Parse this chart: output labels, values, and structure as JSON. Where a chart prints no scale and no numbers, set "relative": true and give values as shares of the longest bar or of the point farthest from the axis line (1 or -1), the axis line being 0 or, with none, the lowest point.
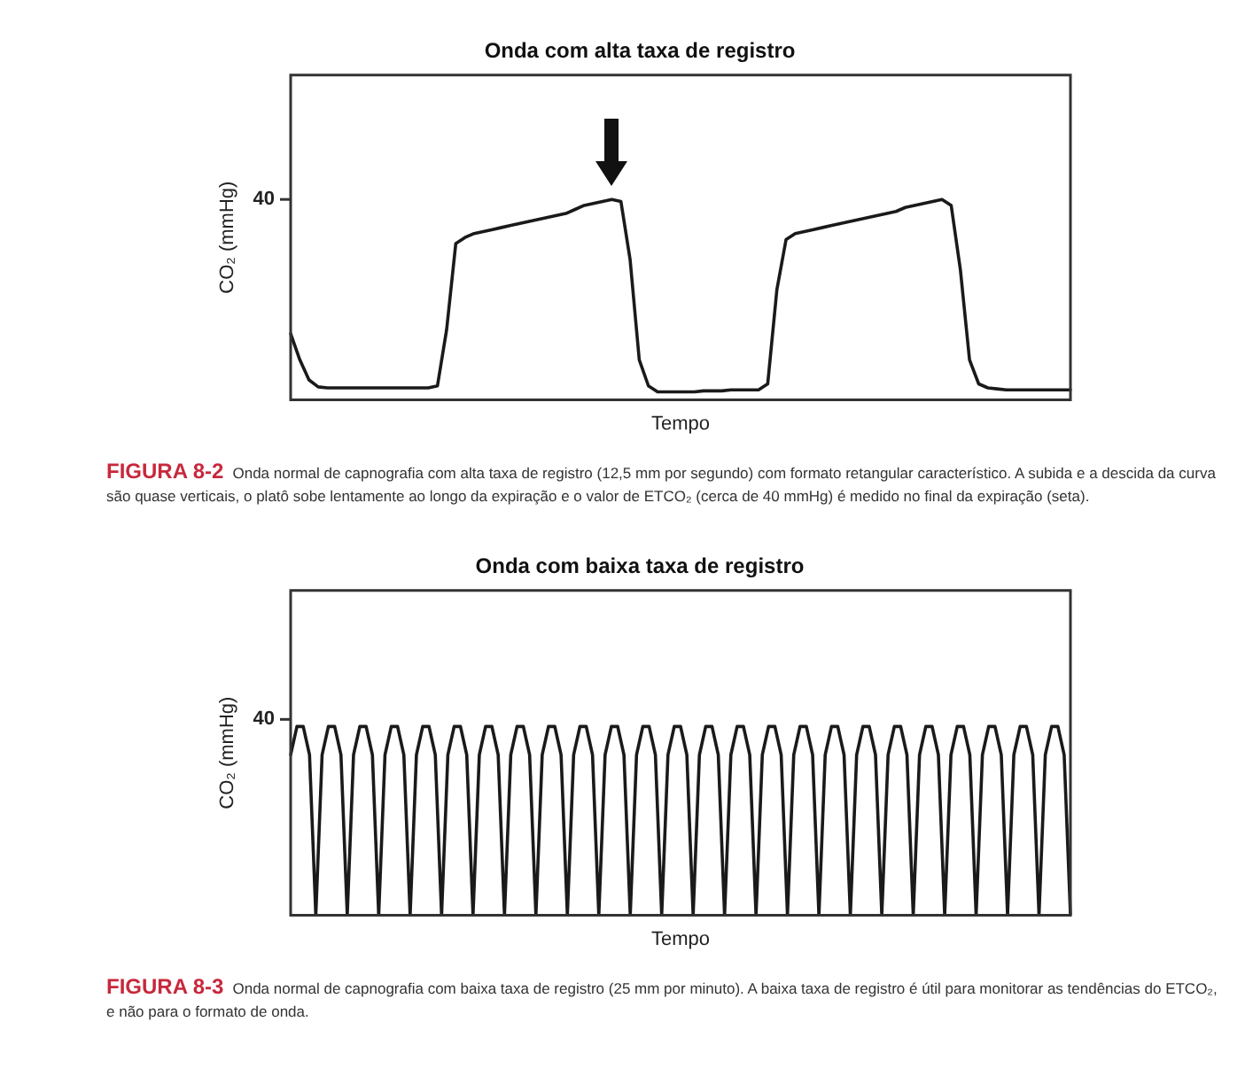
{
  "chart_data": [
    {
      "type": "line",
      "title": "Onda com alta taxa de registro",
      "xlabel": "Tempo",
      "ylabel": "CO₂ (mmHg)",
      "relative": true,
      "grid": false,
      "legend": false,
      "marker": "none",
      "line_style": "solid",
      "categories": [
        null,
        null,
        null,
        null,
        null,
        null,
        null,
        null,
        null,
        null,
        null,
        null,
        null,
        null,
        null,
        null,
        null,
        null,
        null,
        null,
        null,
        null,
        null,
        null,
        null,
        null,
        null,
        null,
        null,
        null,
        null,
        null,
        null,
        null,
        null,
        null,
        null,
        null,
        null,
        null,
        null,
        null,
        null,
        null,
        null,
        null,
        null,
        null,
        null,
        null,
        null,
        null,
        null,
        null,
        null,
        null,
        null,
        null,
        null,
        null,
        null,
        null,
        null,
        null,
        null,
        null,
        null,
        null,
        null,
        null,
        null,
        null,
        null,
        null,
        null,
        null,
        null,
        null,
        null,
        null,
        null,
        null,
        null,
        null,
        null,
        null
      ],
      "series": [
        {
          "color": "#1a1a1a",
          "values": [
            0.33,
            0.2,
            0.1,
            0.065,
            0.06,
            0.06,
            0.06,
            0.06,
            0.06,
            0.06,
            0.06,
            0.06,
            0.06,
            0.06,
            0.06,
            0.06,
            0.07,
            0.35,
            0.78,
            0.81,
            0.83,
            0.84,
            0.85,
            0.86,
            0.87,
            0.88,
            0.89,
            0.9,
            0.91,
            0.92,
            0.93,
            0.95,
            0.97,
            0.98,
            0.99,
            1.0,
            0.99,
            0.7,
            0.2,
            0.07,
            0.04,
            0.04,
            0.04,
            0.04,
            0.04,
            0.045,
            0.045,
            0.045,
            0.05,
            0.05,
            0.05,
            0.05,
            0.08,
            0.55,
            0.8,
            0.83,
            0.84,
            0.85,
            0.86,
            0.87,
            0.88,
            0.89,
            0.9,
            0.91,
            0.92,
            0.93,
            0.94,
            0.96,
            0.97,
            0.98,
            0.99,
            1.0,
            0.97,
            0.65,
            0.2,
            0.08,
            0.06,
            0.055,
            0.05,
            0.05,
            0.05,
            0.05,
            0.05,
            0.05,
            0.05,
            0.05
          ]
        }
      ],
      "annotations": [
        "40",
        "FIGURA 8-2",
        "Onda normal de capnografia com alta taxa de registro (12,5 mm por segundo) com formato retangular característico. A subida e a descida da curva são quase verticais, o platô sobe lentamente ao longo da expiração e o valor de ETCO₂ (cerca de 40 mmHg) é medido no final da expiração (seta)."
      ]
    },
    {
      "type": "line",
      "title": "Onda com baixa taxa de registro",
      "xlabel": "Tempo",
      "ylabel": "CO₂ (mmHg)",
      "relative": true,
      "grid": false,
      "legend": false,
      "marker": "none",
      "line_style": "solid",
      "categories": [
        null,
        null,
        null,
        null,
        null,
        null,
        null,
        null,
        null,
        null,
        null,
        null,
        null,
        null,
        null,
        null,
        null,
        null,
        null,
        null,
        null,
        null,
        null,
        null,
        null,
        null,
        null,
        null,
        null,
        null,
        null,
        null,
        null,
        null,
        null,
        null,
        null,
        null,
        null,
        null,
        null,
        null,
        null,
        null,
        null,
        null,
        null,
        null,
        null,
        null,
        null,
        null,
        null,
        null,
        null,
        null,
        null,
        null,
        null,
        null,
        null,
        null,
        null,
        null,
        null,
        null,
        null,
        null,
        null,
        null,
        null,
        null,
        null,
        null,
        null,
        null,
        null,
        null,
        null,
        null,
        null,
        null,
        null,
        null,
        null,
        null,
        null,
        null,
        null,
        null,
        null,
        null,
        null,
        null,
        null,
        null,
        null,
        null,
        null,
        null,
        null,
        null,
        null,
        null,
        null,
        null,
        null,
        null,
        null,
        null,
        null,
        null,
        null,
        null,
        null,
        null,
        null,
        null,
        null,
        null,
        null,
        null,
        null,
        null,
        null
      ],
      "series": [
        {
          "color": "#1a1a1a",
          "values": [
            0.85,
            1,
            1,
            0.85,
            0,
            0.85,
            1,
            1,
            0.85,
            0,
            0.85,
            1,
            1,
            0.85,
            0,
            0.85,
            1,
            1,
            0.85,
            0,
            0.85,
            1,
            1,
            0.85,
            0,
            0.85,
            1,
            1,
            0.85,
            0,
            0.85,
            1,
            1,
            0.85,
            0,
            0.85,
            1,
            1,
            0.85,
            0,
            0.85,
            1,
            1,
            0.85,
            0,
            0.85,
            1,
            1,
            0.85,
            0,
            0.85,
            1,
            1,
            0.85,
            0,
            0.85,
            1,
            1,
            0.85,
            0,
            0.85,
            1,
            1,
            0.85,
            0,
            0.85,
            1,
            1,
            0.85,
            0,
            0.85,
            1,
            1,
            0.85,
            0,
            0.85,
            1,
            1,
            0.85,
            0,
            0.85,
            1,
            1,
            0.85,
            0,
            0.85,
            1,
            1,
            0.85,
            0,
            0.85,
            1,
            1,
            0.85,
            0,
            0.85,
            1,
            1,
            0.85,
            0,
            0.85,
            1,
            1,
            0.85,
            0,
            0.85,
            1,
            1,
            0.85,
            0,
            0.85,
            1,
            1,
            0.85,
            0,
            0.85,
            1,
            1,
            0.85,
            0,
            0.85,
            1,
            1,
            0.85,
            0
          ]
        }
      ],
      "annotations": [
        "40",
        "FIGURA 8-3",
        "Onda normal de capnografia com baixa taxa de registro (25 mm por minuto). A baixa taxa de registro é útil para monitorar as tendências do ETCO₂, e não para o formato de onda."
      ]
    }
  ]
}
